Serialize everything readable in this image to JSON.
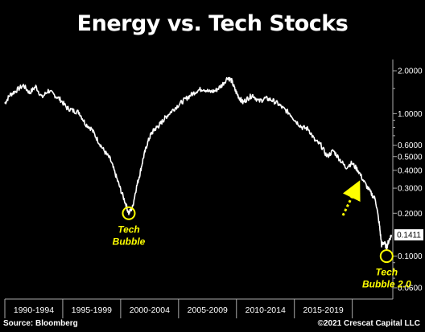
{
  "title": "Energy vs. Tech Stocks",
  "source": "Source: Bloomberg",
  "copyright": "©2021 Crescat Capital LLC",
  "colors": {
    "background": "#000000",
    "line": "#ffffff",
    "highlight": "#ffff00",
    "axis": "#aaaaaa"
  },
  "chart_data": {
    "type": "line",
    "x_categories": [
      "1990-1994",
      "1995-1999",
      "2000-2004",
      "2005-2009",
      "2010-2014",
      "2015-2019"
    ],
    "y_scale": "log",
    "ylim": [
      0.05,
      2.4
    ],
    "y_ticks": [
      {
        "value": 2.0,
        "label": "2.0000"
      },
      {
        "value": 1.0,
        "label": "1.0000"
      },
      {
        "value": 0.6,
        "label": "0.6000"
      },
      {
        "value": 0.5,
        "label": "0.5000"
      },
      {
        "value": 0.4,
        "label": "0.4000"
      },
      {
        "value": 0.3,
        "label": "0.3000"
      },
      {
        "value": 0.2,
        "label": "0.2000"
      },
      {
        "value": 0.1,
        "label": "0.1000"
      },
      {
        "value": 0.06,
        "label": "0.0600"
      }
    ],
    "x_range": [
      1990,
      2021.3
    ],
    "series": [
      {
        "x": [
          1990.0,
          1990.4,
          1990.9,
          1991.5,
          1992.0,
          1992.5,
          1993.0,
          1993.5,
          1994.0,
          1994.5,
          1995.0,
          1995.5,
          1996.0,
          1996.5,
          1997.0,
          1997.5,
          1998.0,
          1998.5,
          1998.9,
          1999.3,
          1999.7,
          2000.0,
          2000.3,
          2000.6,
          2000.9,
          2001.2,
          2001.5,
          2001.8,
          2002.1,
          2002.4,
          2002.7,
          2003.0,
          2003.5,
          2004.0,
          2004.5,
          2005.0,
          2005.5,
          2006.0,
          2006.5,
          2007.0,
          2007.5,
          2008.0,
          2008.3,
          2008.6,
          2008.9,
          2009.2,
          2009.6,
          2010.0,
          2010.5,
          2011.0,
          2011.5,
          2012.0,
          2012.5,
          2013.0,
          2013.5,
          2014.0,
          2014.5,
          2015.0,
          2015.5,
          2016.0,
          2016.5,
          2017.0,
          2017.5,
          2018.0,
          2018.5,
          2019.0,
          2019.5,
          2019.9,
          2020.2,
          2020.4,
          2020.6,
          2020.8,
          2021.0,
          2021.2
        ],
        "values": [
          1.18,
          1.35,
          1.45,
          1.58,
          1.4,
          1.55,
          1.3,
          1.45,
          1.35,
          1.25,
          1.1,
          1.05,
          1.02,
          0.85,
          0.78,
          0.65,
          0.55,
          0.48,
          0.38,
          0.3,
          0.24,
          0.2,
          0.22,
          0.3,
          0.38,
          0.5,
          0.62,
          0.72,
          0.78,
          0.82,
          0.88,
          0.95,
          1.05,
          1.15,
          1.25,
          1.35,
          1.45,
          1.5,
          1.42,
          1.45,
          1.58,
          1.8,
          1.7,
          1.45,
          1.3,
          1.2,
          1.28,
          1.35,
          1.22,
          1.28,
          1.25,
          1.18,
          1.08,
          1.0,
          0.88,
          0.8,
          0.78,
          0.65,
          0.6,
          0.5,
          0.55,
          0.48,
          0.42,
          0.45,
          0.4,
          0.33,
          0.28,
          0.25,
          0.17,
          0.12,
          0.125,
          0.115,
          0.13,
          0.1411
        ]
      }
    ],
    "last_value_label": "0.1411",
    "annotations": [
      {
        "label_lines": [
          "Tech",
          "Bubble"
        ],
        "x": 2000.0,
        "y": 0.2
      },
      {
        "label_lines": [
          "Tech",
          "Bubble 2.0"
        ],
        "x": 2020.8,
        "y": 0.1
      }
    ]
  }
}
